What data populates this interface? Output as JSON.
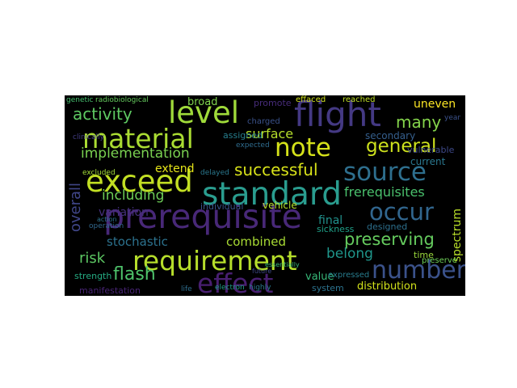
{
  "words": [
    {
      "text": "prerequisite",
      "color": "#482878"
    },
    {
      "text": "standard",
      "color": "#2a9d8f"
    },
    {
      "text": "requirement",
      "color": "#b6de2b"
    },
    {
      "text": "exceed",
      "color": "#c2df23"
    },
    {
      "text": "material",
      "color": "#aadc32"
    },
    {
      "text": "flight",
      "color": "#443983"
    },
    {
      "text": "level",
      "color": "#9fda3a"
    },
    {
      "text": "note",
      "color": "#d5e21a"
    },
    {
      "text": "source",
      "color": "#2e6f8e"
    },
    {
      "text": "occur",
      "color": "#31668e"
    },
    {
      "text": "number",
      "color": "#3b528b"
    },
    {
      "text": "effect",
      "color": "#481f70"
    },
    {
      "text": "general",
      "color": "#cde11d"
    },
    {
      "text": "implementation",
      "color": "#7ad151"
    },
    {
      "text": "activity",
      "color": "#5ec962"
    },
    {
      "text": "preserving",
      "color": "#65cb5e"
    },
    {
      "text": "successful",
      "color": "#d8e219"
    },
    {
      "text": "many",
      "color": "#84d44b"
    },
    {
      "text": "surface",
      "color": "#b5de2b"
    },
    {
      "text": "frerequisites",
      "color": "#4ac16d"
    },
    {
      "text": "including",
      "color": "#6ece58"
    },
    {
      "text": "flash",
      "color": "#4ec36b"
    },
    {
      "text": "risk",
      "color": "#5dc863"
    },
    {
      "text": "belong",
      "color": "#1f968b"
    },
    {
      "text": "extend",
      "color": "#e5e419"
    },
    {
      "text": "stochastic",
      "color": "#2c728e"
    },
    {
      "text": "combined",
      "color": "#a8db34"
    },
    {
      "text": "overall",
      "color": "#404688"
    },
    {
      "text": "variation",
      "color": "#46307e"
    },
    {
      "text": "distribution",
      "color": "#d2e21b"
    },
    {
      "text": "spectrum",
      "color": "#b8de29"
    },
    {
      "text": "final",
      "color": "#21918c"
    },
    {
      "text": "broad",
      "color": "#7fd34e"
    },
    {
      "text": "uneven",
      "color": "#fde725"
    },
    {
      "text": "secondary",
      "color": "#355f8d"
    },
    {
      "text": "value",
      "color": "#37b878"
    },
    {
      "text": "current",
      "color": "#2a778e"
    },
    {
      "text": "sickness",
      "color": "#1fa088"
    },
    {
      "text": "designed",
      "color": "#2d708e"
    },
    {
      "text": "expressed",
      "color": "#287d8e"
    },
    {
      "text": "system",
      "color": "#2c738e"
    },
    {
      "text": "vehicle",
      "color": "#b5de2b"
    },
    {
      "text": "individual",
      "color": "#3b528b"
    },
    {
      "text": "assigned",
      "color": "#277f8e"
    },
    {
      "text": "time",
      "color": "#9bd93c"
    },
    {
      "text": "preserve",
      "color": "#6ece58"
    },
    {
      "text": "strength",
      "color": "#25ab82"
    },
    {
      "text": "manifestation",
      "color": "#482475"
    },
    {
      "text": "vulnerable",
      "color": "#3e4989"
    },
    {
      "text": "promote",
      "color": "#472c7a"
    },
    {
      "text": "effaced",
      "color": "#d0e11c"
    },
    {
      "text": "reached",
      "color": "#c0df25"
    },
    {
      "text": "charged",
      "color": "#3b528b"
    },
    {
      "text": "expected",
      "color": "#2f6c8e"
    },
    {
      "text": "delayed",
      "color": "#2a788e"
    },
    {
      "text": "excluded",
      "color": "#a2da37"
    },
    {
      "text": "radiobiological",
      "color": "#65cb5e"
    },
    {
      "text": "genetic",
      "color": "#46c06f"
    },
    {
      "text": "clinically",
      "color": "#433e85"
    },
    {
      "text": "electron",
      "color": "#1f9e89"
    },
    {
      "text": "highly",
      "color": "#2a778e"
    },
    {
      "text": "essentially",
      "color": "#3aba76"
    },
    {
      "text": "future",
      "color": "#3e4989"
    },
    {
      "text": "operation",
      "color": "#31688e"
    },
    {
      "text": "action",
      "color": "#2c728e"
    },
    {
      "text": "life",
      "color": "#2e6e8e"
    },
    {
      "text": "year",
      "color": "#3b528b"
    }
  ]
}
